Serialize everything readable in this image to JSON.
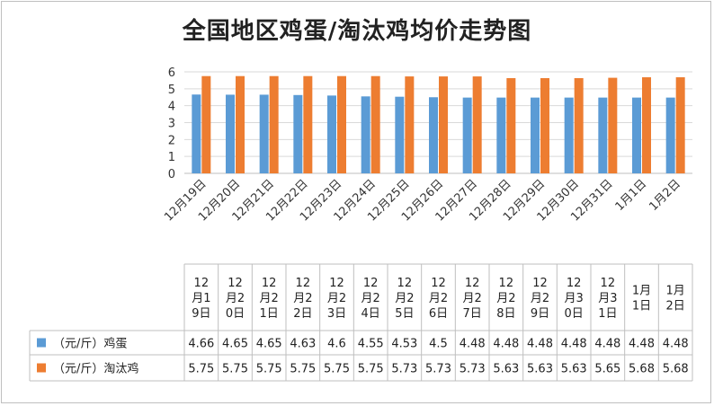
{
  "chart_data": {
    "type": "bar",
    "title": "全国地区鸡蛋/淘汰鸡均价走势图",
    "categories": [
      "12月19日",
      "12月20日",
      "12月21日",
      "12月22日",
      "12月23日",
      "12月24日",
      "12月25日",
      "12月26日",
      "12月27日",
      "12月28日",
      "12月29日",
      "12月30日",
      "12月31日",
      "1月1日",
      "1月2日"
    ],
    "table_headers": [
      [
        "12",
        "月1",
        "9日"
      ],
      [
        "12",
        "月2",
        "0日"
      ],
      [
        "12",
        "月2",
        "1日"
      ],
      [
        "12",
        "月2",
        "2日"
      ],
      [
        "12",
        "月2",
        "3日"
      ],
      [
        "12",
        "月2",
        "4日"
      ],
      [
        "12",
        "月2",
        "5日"
      ],
      [
        "12",
        "月2",
        "6日"
      ],
      [
        "12",
        "月2",
        "7日"
      ],
      [
        "12",
        "月2",
        "8日"
      ],
      [
        "12",
        "月2",
        "9日"
      ],
      [
        "12",
        "月3",
        "0日"
      ],
      [
        "12",
        "月3",
        "1日"
      ],
      [
        "1月",
        "1日"
      ],
      [
        "1月",
        "2日"
      ]
    ],
    "series": [
      {
        "name": "（元/斤）鸡蛋",
        "color": "#5b9bd5",
        "values": [
          4.66,
          4.65,
          4.65,
          4.63,
          4.6,
          4.55,
          4.53,
          4.5,
          4.48,
          4.48,
          4.48,
          4.48,
          4.48,
          4.48,
          4.48
        ]
      },
      {
        "name": "（元/斤）淘汰鸡",
        "color": "#ed7d31",
        "values": [
          5.75,
          5.75,
          5.75,
          5.75,
          5.75,
          5.75,
          5.73,
          5.73,
          5.73,
          5.63,
          5.63,
          5.63,
          5.65,
          5.68,
          5.68
        ]
      }
    ],
    "ylim": [
      0,
      6
    ],
    "yticks": [
      0,
      1,
      2,
      3,
      4,
      5,
      6
    ],
    "grid": true,
    "legend": "data-table"
  }
}
